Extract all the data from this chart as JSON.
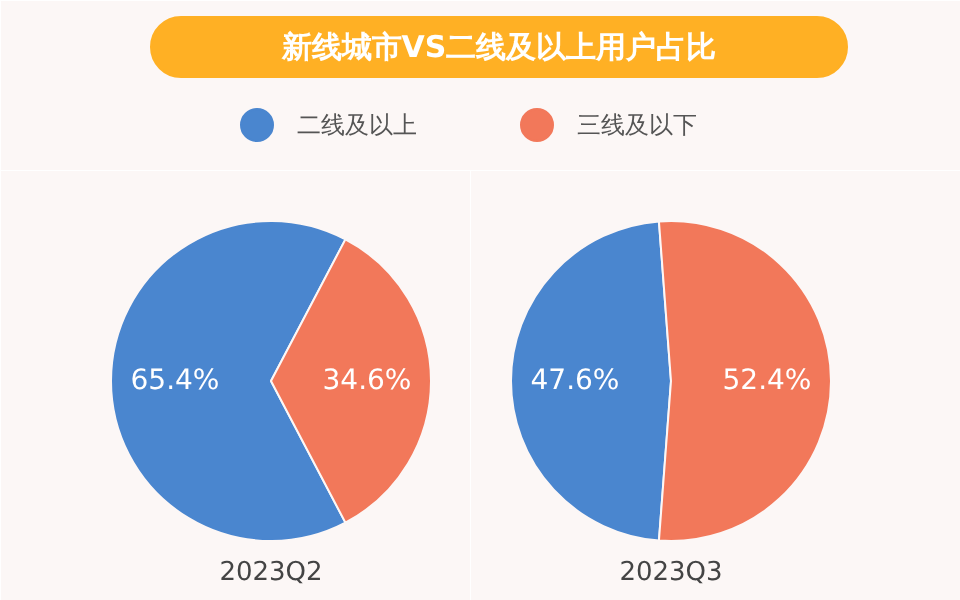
{
  "chart_data": [
    {
      "type": "pie",
      "title": "新线城市VS二线及以上用户占比",
      "legend": "top",
      "xlabel": "2023Q2",
      "categories": [
        "二线及以上",
        "三线及以下"
      ],
      "values": [
        65.4,
        34.6
      ],
      "colors": [
        "#4a86cf",
        "#f2785a"
      ],
      "value_labels": [
        "65.4%",
        "34.6%"
      ]
    },
    {
      "type": "pie",
      "xlabel": "2023Q3",
      "values": [
        47.6,
        52.4
      ],
      "colors": [
        "#4a86cf",
        "#f2785a"
      ],
      "value_labels": [
        "47.6%",
        "52.4%"
      ]
    }
  ]
}
